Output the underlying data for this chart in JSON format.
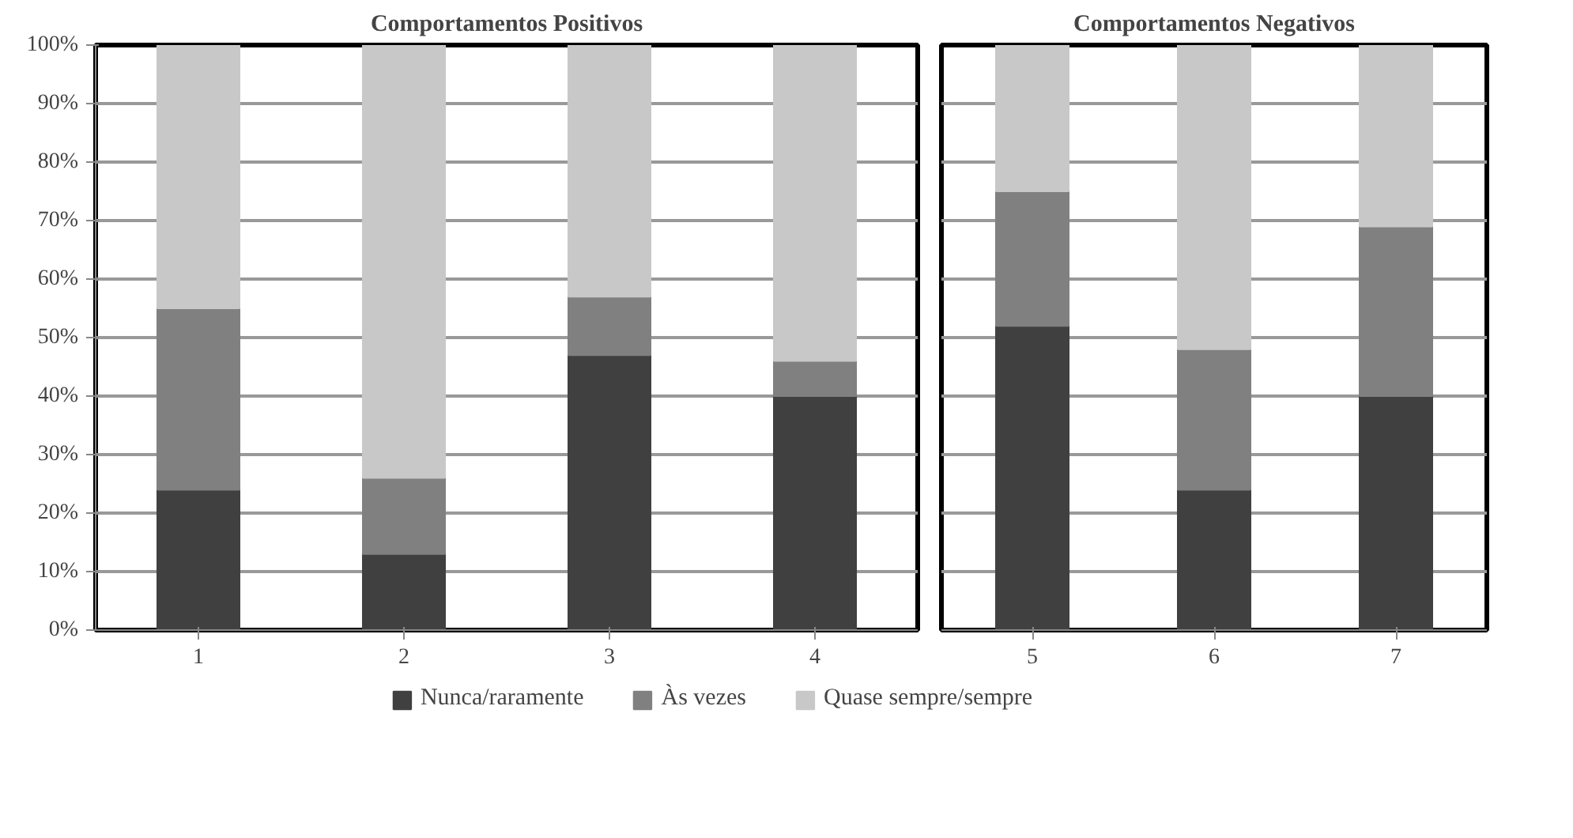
{
  "chart_data": [
    {
      "type": "bar",
      "title": "Comportamentos Positivos",
      "categories": [
        "1",
        "2",
        "3",
        "4"
      ],
      "stacked": true,
      "ylim": [
        0,
        100
      ],
      "yticks": [
        {
          "value": 0,
          "label": "0%"
        },
        {
          "value": 10,
          "label": "10%"
        },
        {
          "value": 20,
          "label": "20%"
        },
        {
          "value": 30,
          "label": "30%"
        },
        {
          "value": 40,
          "label": "40%"
        },
        {
          "value": 50,
          "label": "50%"
        },
        {
          "value": 60,
          "label": "60%"
        },
        {
          "value": 70,
          "label": "70%"
        },
        {
          "value": 80,
          "label": "80%"
        },
        {
          "value": 90,
          "label": "90%"
        },
        {
          "value": 100,
          "label": "100%"
        }
      ],
      "grid": "y",
      "legend": "bottom",
      "series": [
        {
          "name": "Nunca/raramente",
          "color": "#404040",
          "values": [
            24,
            13,
            47,
            40
          ]
        },
        {
          "name": "Às vezes",
          "color": "#808080",
          "values": [
            31,
            13,
            10,
            6
          ]
        },
        {
          "name": "Quase sempre/sempre",
          "color": "#c8c8c8",
          "values": [
            45,
            74,
            43,
            54
          ]
        }
      ]
    },
    {
      "type": "bar",
      "title": "Comportamentos Negativos",
      "categories": [
        "5",
        "6",
        "7"
      ],
      "stacked": true,
      "ylim": [
        0,
        100
      ],
      "tick_labels": "x",
      "grid": "y",
      "series": [
        {
          "color": "#404040",
          "values": [
            52,
            24,
            40
          ]
        },
        {
          "color": "#808080",
          "values": [
            23,
            24,
            29
          ]
        },
        {
          "color": "#c8c8c8",
          "values": [
            25,
            52,
            31
          ]
        }
      ]
    }
  ]
}
